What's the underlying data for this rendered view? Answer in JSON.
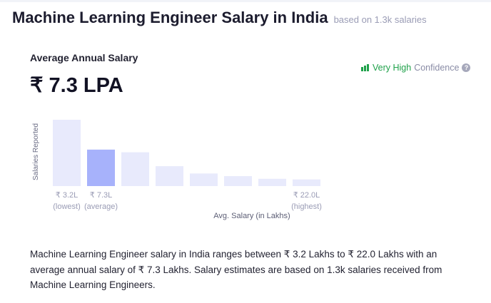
{
  "header": {
    "title": "Machine Learning Engineer Salary in India",
    "subtitle": "based on 1.3k salaries"
  },
  "summary": {
    "label": "Average Annual Salary",
    "value": "₹ 7.3 LPA",
    "confidence_level": "Very High",
    "confidence_text": "Confidence",
    "help": "?"
  },
  "chart_data": {
    "type": "bar",
    "categories": [
      "₹ 3.2L",
      "₹ 7.3L",
      "",
      "",
      "",
      "",
      "",
      "₹ 22.0L"
    ],
    "sublabels": [
      "(lowest)",
      "(average)",
      "",
      "",
      "",
      "",
      "",
      "(highest)"
    ],
    "values": [
      100,
      55,
      51,
      30,
      19,
      15,
      11,
      10
    ],
    "highlight_index": 1,
    "xlabel": "Avg. Salary (in Lakhs)",
    "ylabel": "Salaries Reported",
    "colors": {
      "bar": "#e8eafc",
      "highlight": "#a7b2fb",
      "tick": "#9a9cb5"
    }
  },
  "description": "Machine Learning Engineer salary in India ranges between ₹ 3.2 Lakhs to ₹ 22.0 Lakhs with an average annual salary of ₹ 7.3 Lakhs. Salary estimates are based on 1.3k salaries received from Machine Learning Engineers."
}
